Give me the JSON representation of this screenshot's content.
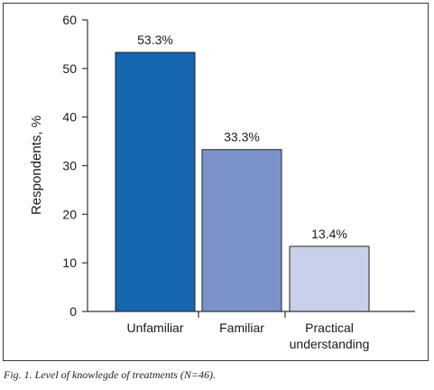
{
  "chart_data": {
    "type": "bar",
    "categories": [
      [
        "Unfamiliar"
      ],
      [
        "Familiar"
      ],
      [
        "Practical",
        "understanding"
      ]
    ],
    "values": [
      53.3,
      33.3,
      13.4
    ],
    "data_labels": [
      "53.3%",
      "33.3%",
      "13.4%"
    ],
    "colors": [
      "#1565b0",
      "#7b93c9",
      "#c8d1ea"
    ],
    "ylabel": "Respondents, %",
    "xlabel": "",
    "ylim": [
      0,
      60
    ],
    "yticks": [
      0,
      10,
      20,
      30,
      40,
      50,
      60
    ],
    "grid": false,
    "legend": "none"
  },
  "caption": "Fig. 1. Level of knowlegde of treatments (N=46)."
}
